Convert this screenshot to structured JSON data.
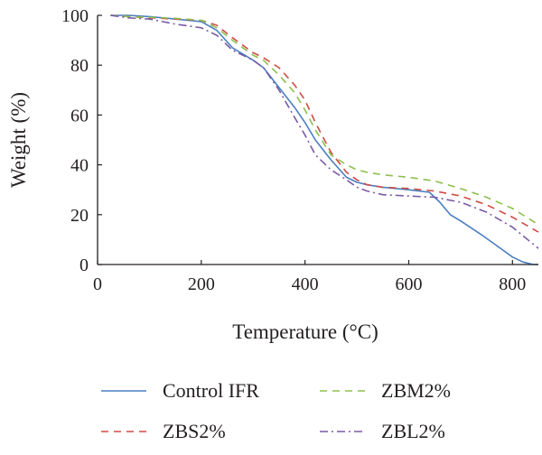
{
  "chart_data": {
    "type": "line",
    "title": "",
    "xlabel": "Temperature (°C)",
    "ylabel": "Weight (%)",
    "xlim": [
      0,
      850
    ],
    "ylim": [
      0,
      100
    ],
    "xticks": [
      0,
      200,
      400,
      600,
      800
    ],
    "yticks": [
      0,
      20,
      40,
      60,
      80,
      100
    ],
    "grid": false,
    "legend_position": "bottom",
    "series": [
      {
        "name": "Control IFR",
        "color": "#4a7fc1",
        "dash": "solid",
        "x": [
          25,
          60,
          100,
          150,
          200,
          230,
          260,
          300,
          320,
          350,
          380,
          400,
          420,
          450,
          480,
          500,
          520,
          550,
          600,
          640,
          660,
          680,
          700,
          740,
          780,
          800,
          820,
          840,
          850
        ],
        "y": [
          100,
          100,
          99.5,
          98.5,
          97.5,
          94,
          87,
          82,
          79,
          71,
          63,
          57,
          50,
          42,
          35,
          33,
          32,
          31,
          30,
          29,
          25,
          20,
          17.5,
          12,
          6,
          3,
          1,
          0,
          0
        ]
      },
      {
        "name": "ZBS2%",
        "color": "#cf4b43",
        "dash": "dashed",
        "x": [
          25,
          60,
          100,
          150,
          200,
          230,
          260,
          300,
          320,
          350,
          380,
          400,
          420,
          450,
          480,
          500,
          520,
          550,
          600,
          650,
          700,
          750,
          800,
          850
        ],
        "y": [
          100,
          99.5,
          99,
          98.5,
          98,
          96,
          91,
          85,
          83,
          79,
          72,
          66,
          57,
          45,
          37,
          34,
          32,
          31,
          30.5,
          29.5,
          27.5,
          24,
          19,
          13
        ]
      },
      {
        "name": "ZBM2%",
        "color": "#8dbf4f",
        "dash": "dashed",
        "x": [
          25,
          60,
          100,
          150,
          200,
          230,
          260,
          300,
          320,
          350,
          380,
          400,
          420,
          450,
          480,
          500,
          520,
          550,
          600,
          650,
          700,
          750,
          800,
          850
        ],
        "y": [
          100,
          99.5,
          99.2,
          98.8,
          98,
          95,
          90,
          84,
          82,
          76,
          69,
          62,
          54,
          44,
          40,
          38,
          37,
          36,
          35,
          33.5,
          30.5,
          27,
          22.5,
          16
        ]
      },
      {
        "name": "ZBL2%",
        "color": "#7a5aa6",
        "dash": "dashdot",
        "x": [
          25,
          60,
          100,
          150,
          200,
          230,
          260,
          300,
          320,
          350,
          380,
          400,
          420,
          450,
          480,
          500,
          520,
          550,
          600,
          650,
          700,
          750,
          800,
          850
        ],
        "y": [
          100,
          99,
          98.5,
          96.5,
          95,
          92,
          86,
          82,
          79,
          70,
          59,
          52,
          44,
          38,
          34,
          31,
          29.5,
          28,
          27.5,
          27,
          25,
          21,
          15,
          6.5
        ]
      }
    ]
  }
}
